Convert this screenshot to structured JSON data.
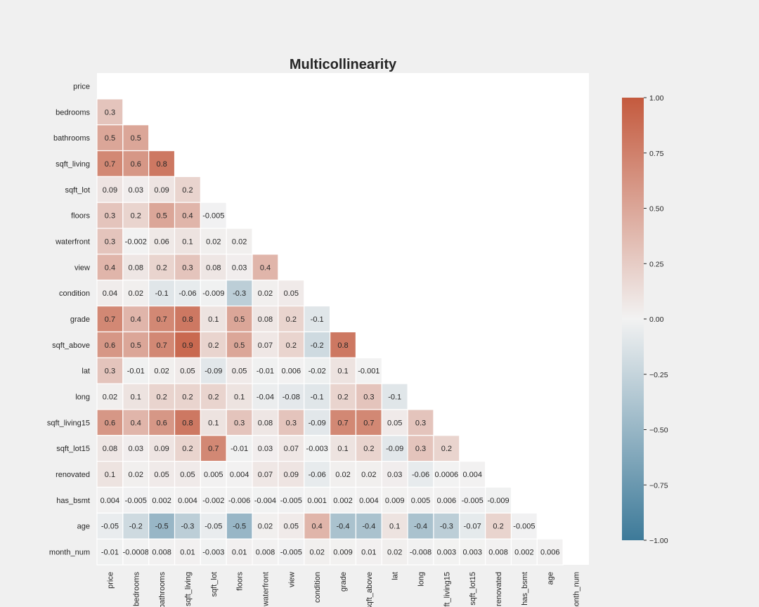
{
  "chart_data": {
    "type": "heatmap",
    "title": "Multicollinearity",
    "variables": [
      "price",
      "bedrooms",
      "bathrooms",
      "sqft_living",
      "sqft_lot",
      "floors",
      "waterfront",
      "view",
      "condition",
      "grade",
      "sqft_above",
      "lat",
      "long",
      "sqft_living15",
      "sqft_lot15",
      "renovated",
      "has_bsmt",
      "age",
      "month_num"
    ],
    "lower_triangle": [
      [],
      [
        "0.3"
      ],
      [
        "0.5",
        "0.5"
      ],
      [
        "0.7",
        "0.6",
        "0.8"
      ],
      [
        "0.09",
        "0.03",
        "0.09",
        "0.2"
      ],
      [
        "0.3",
        "0.2",
        "0.5",
        "0.4",
        "-0.005"
      ],
      [
        "0.3",
        "-0.002",
        "0.06",
        "0.1",
        "0.02",
        "0.02"
      ],
      [
        "0.4",
        "0.08",
        "0.2",
        "0.3",
        "0.08",
        "0.03",
        "0.4"
      ],
      [
        "0.04",
        "0.02",
        "-0.1",
        "-0.06",
        "-0.009",
        "-0.3",
        "0.02",
        "0.05"
      ],
      [
        "0.7",
        "0.4",
        "0.7",
        "0.8",
        "0.1",
        "0.5",
        "0.08",
        "0.2",
        "-0.1"
      ],
      [
        "0.6",
        "0.5",
        "0.7",
        "0.9",
        "0.2",
        "0.5",
        "0.07",
        "0.2",
        "-0.2",
        "0.8"
      ],
      [
        "0.3",
        "-0.01",
        "0.02",
        "0.05",
        "-0.09",
        "0.05",
        "-0.01",
        "0.006",
        "-0.02",
        "0.1",
        "-0.001"
      ],
      [
        "0.02",
        "0.1",
        "0.2",
        "0.2",
        "0.2",
        "0.1",
        "-0.04",
        "-0.08",
        "-0.1",
        "0.2",
        "0.3",
        "-0.1"
      ],
      [
        "0.6",
        "0.4",
        "0.6",
        "0.8",
        "0.1",
        "0.3",
        "0.08",
        "0.3",
        "-0.09",
        "0.7",
        "0.7",
        "0.05",
        "0.3"
      ],
      [
        "0.08",
        "0.03",
        "0.09",
        "0.2",
        "0.7",
        "-0.01",
        "0.03",
        "0.07",
        "-0.003",
        "0.1",
        "0.2",
        "-0.09",
        "0.3",
        "0.2"
      ],
      [
        "0.1",
        "0.02",
        "0.05",
        "0.05",
        "0.005",
        "0.004",
        "0.07",
        "0.09",
        "-0.06",
        "0.02",
        "0.02",
        "0.03",
        "-0.06",
        "0.0006",
        "0.004"
      ],
      [
        "0.004",
        "-0.005",
        "0.002",
        "0.004",
        "-0.002",
        "-0.006",
        "-0.004",
        "-0.005",
        "0.001",
        "0.002",
        "0.004",
        "0.009",
        "0.005",
        "0.006",
        "-0.005",
        "-0.009"
      ],
      [
        "-0.05",
        "-0.2",
        "-0.5",
        "-0.3",
        "-0.05",
        "-0.5",
        "0.02",
        "0.05",
        "0.4",
        "-0.4",
        "-0.4",
        "0.1",
        "-0.4",
        "-0.3",
        "-0.07",
        "0.2",
        "-0.005"
      ],
      [
        "-0.01",
        "-0.0008",
        "0.008",
        "0.01",
        "-0.003",
        "0.01",
        "0.008",
        "-0.005",
        "0.02",
        "0.009",
        "0.01",
        "0.02",
        "-0.008",
        "0.003",
        "0.003",
        "0.008",
        "0.002",
        "0.006"
      ]
    ],
    "color_scale": {
      "min": -1.0,
      "max": 1.0,
      "negative": "#3d7a99",
      "center": "#f2f2f2",
      "positive": "#c45a3e"
    },
    "colorbar_ticks": [
      "1.00",
      "0.75",
      "0.50",
      "0.25",
      "0.00",
      "−0.25",
      "−0.50",
      "−0.75",
      "−1.00"
    ],
    "colorbar_tick_values": [
      1.0,
      0.75,
      0.5,
      0.25,
      0.0,
      -0.25,
      -0.5,
      -0.75,
      -1.0
    ],
    "grid": false,
    "legend": "colorbar-right"
  }
}
